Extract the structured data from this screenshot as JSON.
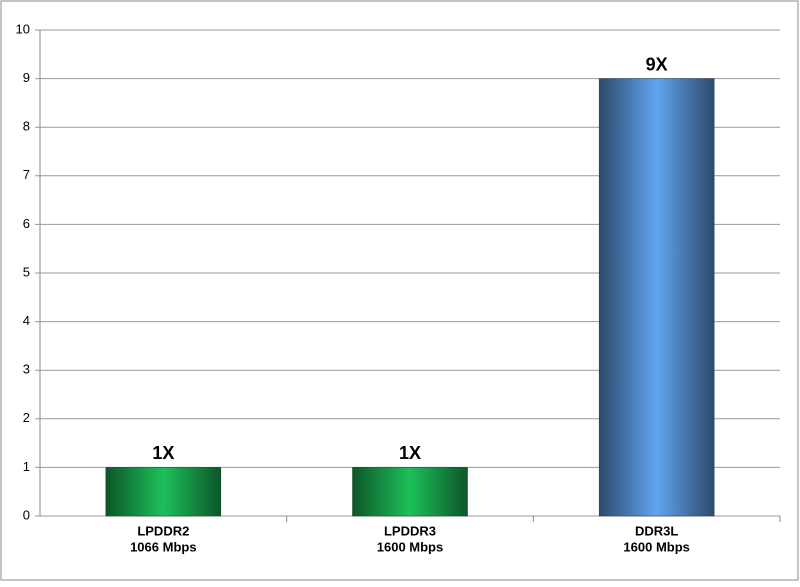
{
  "chart_data": {
    "type": "bar",
    "categories": [
      [
        "LPDDR2",
        "1066 Mbps"
      ],
      [
        "LPDDR3",
        "1600 Mbps"
      ],
      [
        "DDR3L",
        "1600 Mbps"
      ]
    ],
    "values": [
      1,
      1,
      9
    ],
    "value_labels": [
      "1X",
      "1X",
      "9X"
    ],
    "colors": [
      "#1dc05a",
      "#1dc05a",
      "#62a4f0"
    ],
    "ylim": [
      0,
      10
    ],
    "yticks": [
      0,
      1,
      2,
      3,
      4,
      5,
      6,
      7,
      8,
      9,
      10
    ],
    "grid": true
  }
}
